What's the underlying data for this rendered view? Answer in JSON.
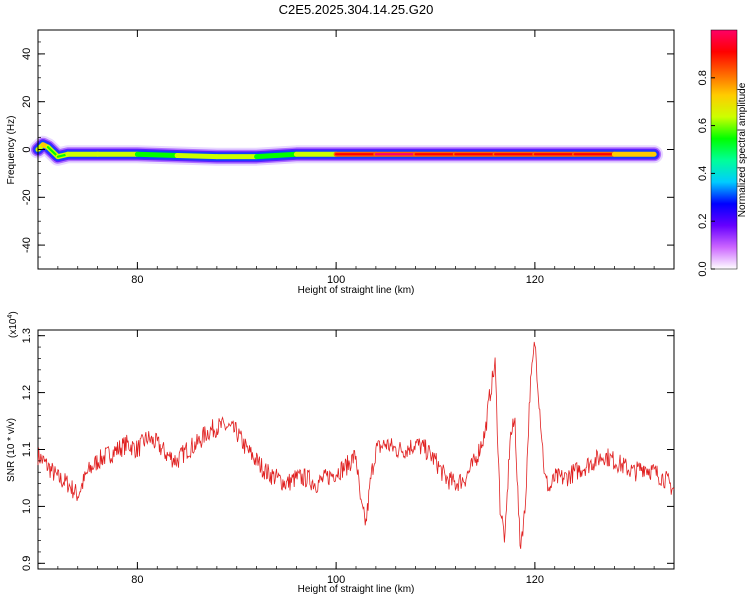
{
  "title": "C2E5.2025.304.14.25.G20",
  "chart_data": [
    {
      "type": "heatmap",
      "xlabel": "Height of straight line (km)",
      "ylabel": "Frequency (Hz)",
      "xlim": [
        70,
        134
      ],
      "ylim": [
        -50,
        50
      ],
      "xticks": [
        "80",
        "100",
        "120"
      ],
      "yticks": [
        "40",
        "20",
        "0",
        "-20",
        "-40"
      ],
      "band": [
        {
          "x": 70.0,
          "y": 0.0,
          "amp": 0.3
        },
        {
          "x": 70.5,
          "y": 2.0,
          "amp": 0.9
        },
        {
          "x": 71.0,
          "y": 1.0,
          "amp": 0.5
        },
        {
          "x": 72.0,
          "y": -3.0,
          "amp": 0.6
        },
        {
          "x": 73.0,
          "y": -2.0,
          "amp": 0.5
        },
        {
          "x": 76.0,
          "y": -2.0,
          "amp": 0.7
        },
        {
          "x": 80.0,
          "y": -2.0,
          "amp": 0.6
        },
        {
          "x": 84.0,
          "y": -2.5,
          "amp": 0.45
        },
        {
          "x": 88.0,
          "y": -3.0,
          "amp": 0.8
        },
        {
          "x": 92.0,
          "y": -3.0,
          "amp": 0.5
        },
        {
          "x": 96.0,
          "y": -2.0,
          "amp": 0.55
        },
        {
          "x": 100.0,
          "y": -2.0,
          "amp": 0.8
        },
        {
          "x": 104.0,
          "y": -2.0,
          "amp": 1.0
        },
        {
          "x": 108.0,
          "y": -2.0,
          "amp": 0.95
        },
        {
          "x": 112.0,
          "y": -2.0,
          "amp": 0.85
        },
        {
          "x": 116.0,
          "y": -2.0,
          "amp": 0.9
        },
        {
          "x": 120.0,
          "y": -2.0,
          "amp": 0.9
        },
        {
          "x": 124.0,
          "y": -2.0,
          "amp": 0.95
        },
        {
          "x": 128.0,
          "y": -2.0,
          "amp": 0.9
        },
        {
          "x": 132.0,
          "y": -2.0,
          "amp": 0.6
        }
      ],
      "colorbar": {
        "label": "Normalized spectral amplitude",
        "ticks": [
          "0.0",
          "0.2",
          "0.4",
          "0.6",
          "0.8"
        ],
        "range": [
          0,
          1
        ],
        "colors": [
          "#ffffff",
          "#cc66ff",
          "#6600ff",
          "#0000ff",
          "#00ccff",
          "#00ff99",
          "#00ff00",
          "#ccff00",
          "#ffcc00",
          "#ff6600",
          "#ff0000",
          "#ff0066"
        ]
      }
    },
    {
      "type": "line",
      "xlabel": "Height of straight line (km)",
      "ylabel": "SNR (10 * v/v)",
      "yexp": "(x10",
      "yexp_power": "4",
      "xlim": [
        70,
        134
      ],
      "ylim": [
        0.89,
        1.31
      ],
      "xticks": [
        "80",
        "100",
        "120"
      ],
      "yticks": [
        "1.3",
        "1.2",
        "1.1",
        "1.0",
        "0.9"
      ],
      "color": "#e02020",
      "series": [
        {
          "x": [
            70,
            71,
            72,
            73,
            74,
            75,
            76,
            77,
            78,
            79,
            80,
            81,
            82,
            83,
            84,
            85,
            86,
            87,
            88,
            89,
            90,
            91,
            92,
            93,
            94,
            95,
            96,
            97,
            98,
            99,
            100,
            101,
            102,
            102.5,
            103,
            103.5,
            104,
            105,
            106,
            107,
            108,
            109,
            110,
            111,
            112,
            113,
            114,
            115,
            115.5,
            116,
            116.5,
            117,
            117.5,
            118,
            118.5,
            119,
            119.5,
            120,
            120.5,
            121,
            121.5,
            122,
            123,
            124,
            125,
            126,
            127,
            128,
            129,
            130,
            131,
            132,
            133,
            134
          ],
          "y": [
            1.09,
            1.07,
            1.05,
            1.04,
            1.02,
            1.06,
            1.08,
            1.09,
            1.1,
            1.11,
            1.1,
            1.12,
            1.11,
            1.09,
            1.08,
            1.1,
            1.11,
            1.13,
            1.14,
            1.14,
            1.13,
            1.1,
            1.08,
            1.06,
            1.05,
            1.04,
            1.05,
            1.05,
            1.04,
            1.05,
            1.06,
            1.07,
            1.09,
            1.0,
            0.97,
            1.05,
            1.1,
            1.11,
            1.1,
            1.1,
            1.11,
            1.1,
            1.08,
            1.05,
            1.04,
            1.05,
            1.08,
            1.13,
            1.2,
            1.25,
            1.0,
            0.94,
            1.12,
            1.15,
            0.93,
            0.99,
            1.2,
            1.29,
            1.17,
            1.05,
            1.03,
            1.05,
            1.05,
            1.06,
            1.07,
            1.08,
            1.09,
            1.08,
            1.07,
            1.06,
            1.07,
            1.06,
            1.05,
            1.03
          ]
        }
      ]
    }
  ]
}
